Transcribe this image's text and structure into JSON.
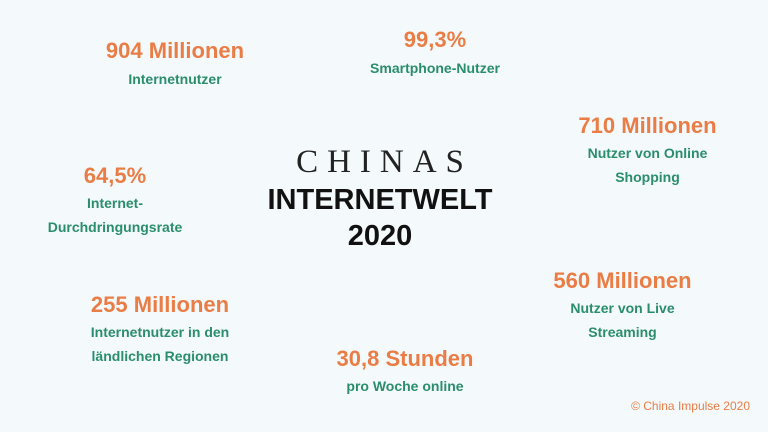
{
  "center": {
    "line1": "CHINAS",
    "line2": "INTERNETWELT",
    "line3": "2020"
  },
  "stats": [
    {
      "value": "904 Millionen",
      "label": "Internetnutzer"
    },
    {
      "value": "99,3%",
      "label": "Smartphone-Nutzer"
    },
    {
      "value": "710 Millionen",
      "label_lines": [
        "Nutzer von Online",
        "Shopping"
      ]
    },
    {
      "value": "64,5%",
      "label_lines": [
        "Internet-",
        "Durchdringungsrate"
      ]
    },
    {
      "value": "560 Millionen",
      "label_lines": [
        "Nutzer von Live",
        "Streaming"
      ]
    },
    {
      "value": "255 Millionen",
      "label_lines": [
        "Internetnutzer in den",
        "ländlichen Regionen"
      ]
    },
    {
      "value": "30,8 Stunden",
      "label": "pro Woche online"
    }
  ],
  "copyright": "© China Impulse 2020",
  "colors": {
    "value": "#ea7d45",
    "label": "#2a8e6c",
    "background": "#f4f9fc"
  }
}
